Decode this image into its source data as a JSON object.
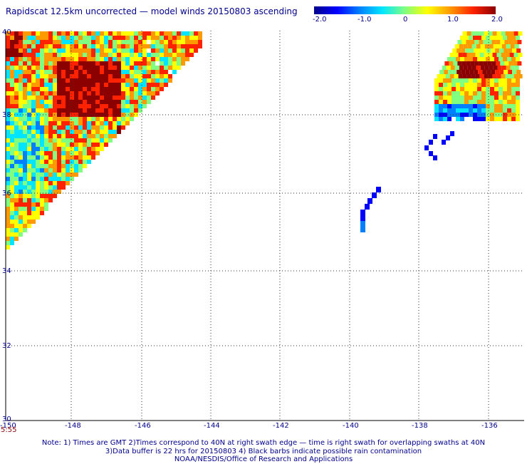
{
  "title": "Rapidscat 12.5km uncorrected — model winds 20150803 ascending",
  "colorbar": {
    "ticks": [
      "-2.0",
      "-1.0",
      "0",
      "1.0",
      "2.0"
    ],
    "min": -2.0,
    "max": 2.0,
    "colors": [
      "#00008b",
      "#0000ff",
      "#0080ff",
      "#00e5ff",
      "#80ff80",
      "#ffff00",
      "#ff9900",
      "#ff2200",
      "#8b0000"
    ]
  },
  "map": {
    "lon_labels": [
      "-150",
      "-148",
      "-146",
      "-144",
      "-142",
      "-140",
      "-138",
      "-136"
    ],
    "lat_labels": [
      "40",
      "38",
      "36",
      "34",
      "32",
      "30"
    ],
    "lon_range": [
      -150,
      -135.5
    ],
    "lat_range": [
      30,
      40
    ],
    "grid": "dotted"
  },
  "timestamp": "5:55",
  "notes": [
    "Note: 1) Times are GMT 2)Times correspond to 40N at right swath edge — time is right swath for overlapping swaths at 40N",
    "3)Data buffer is 22 hrs for 20150803 4) Black barbs indicate possible rain contamination",
    "NOAA/NESDIS/Office of Research and Applications"
  ]
}
